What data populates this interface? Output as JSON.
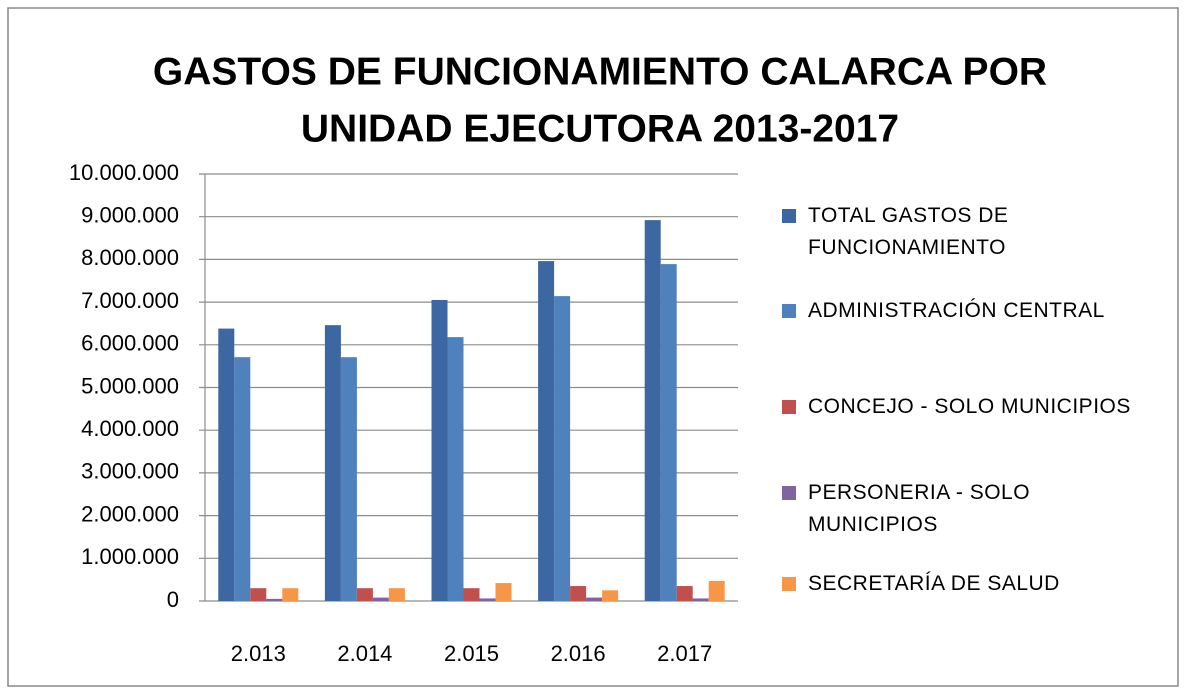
{
  "chart_data": {
    "type": "bar",
    "title_lines": [
      "GASTOS DE FUNCIONAMIENTO CALARCA POR",
      "UNIDAD EJECUTORA 2013-2017"
    ],
    "categories": [
      "2.013",
      "2.014",
      "2.015",
      "2.016",
      "2.017"
    ],
    "series": [
      {
        "name": "TOTAL GASTOS DE FUNCIONAMIENTO",
        "color": "#3c67a3",
        "values": [
          6380000,
          6460000,
          7050000,
          7960000,
          8920000
        ]
      },
      {
        "name": "ADMINISTRACIÓN CENTRAL",
        "color": "#4f81bd",
        "values": [
          5710000,
          5710000,
          6180000,
          7140000,
          7890000
        ]
      },
      {
        "name": "CONCEJO - SOLO MUNICIPIOS",
        "color": "#c0504d",
        "values": [
          300000,
          300000,
          300000,
          350000,
          350000
        ]
      },
      {
        "name": "PERSONERIA - SOLO MUNICIPIOS",
        "color": "#8064a2",
        "values": [
          50000,
          80000,
          60000,
          80000,
          60000
        ]
      },
      {
        "name": "SECRETARÍA DE SALUD",
        "color": "#f79646",
        "values": [
          300000,
          300000,
          420000,
          250000,
          470000
        ]
      }
    ],
    "ylim": [
      0,
      10000000
    ],
    "yticks": [
      0,
      {
        "value": 1000000,
        "label": "1.000.000"
      },
      {
        "value": 2000000,
        "label": "2.000.000"
      },
      {
        "value": 3000000,
        "label": "3.000.000"
      },
      {
        "value": 4000000,
        "label": "4.000.000"
      },
      {
        "value": 5000000,
        "label": "5.000.000"
      },
      {
        "value": 6000000,
        "label": "6.000.000"
      },
      {
        "value": 7000000,
        "label": "7.000.000"
      },
      {
        "value": 8000000,
        "label": "8.000.000"
      },
      {
        "value": 9000000,
        "label": "9.000.000"
      },
      {
        "value": 10000000,
        "label": "10.000.000"
      }
    ],
    "grid": true,
    "legend": "right"
  }
}
